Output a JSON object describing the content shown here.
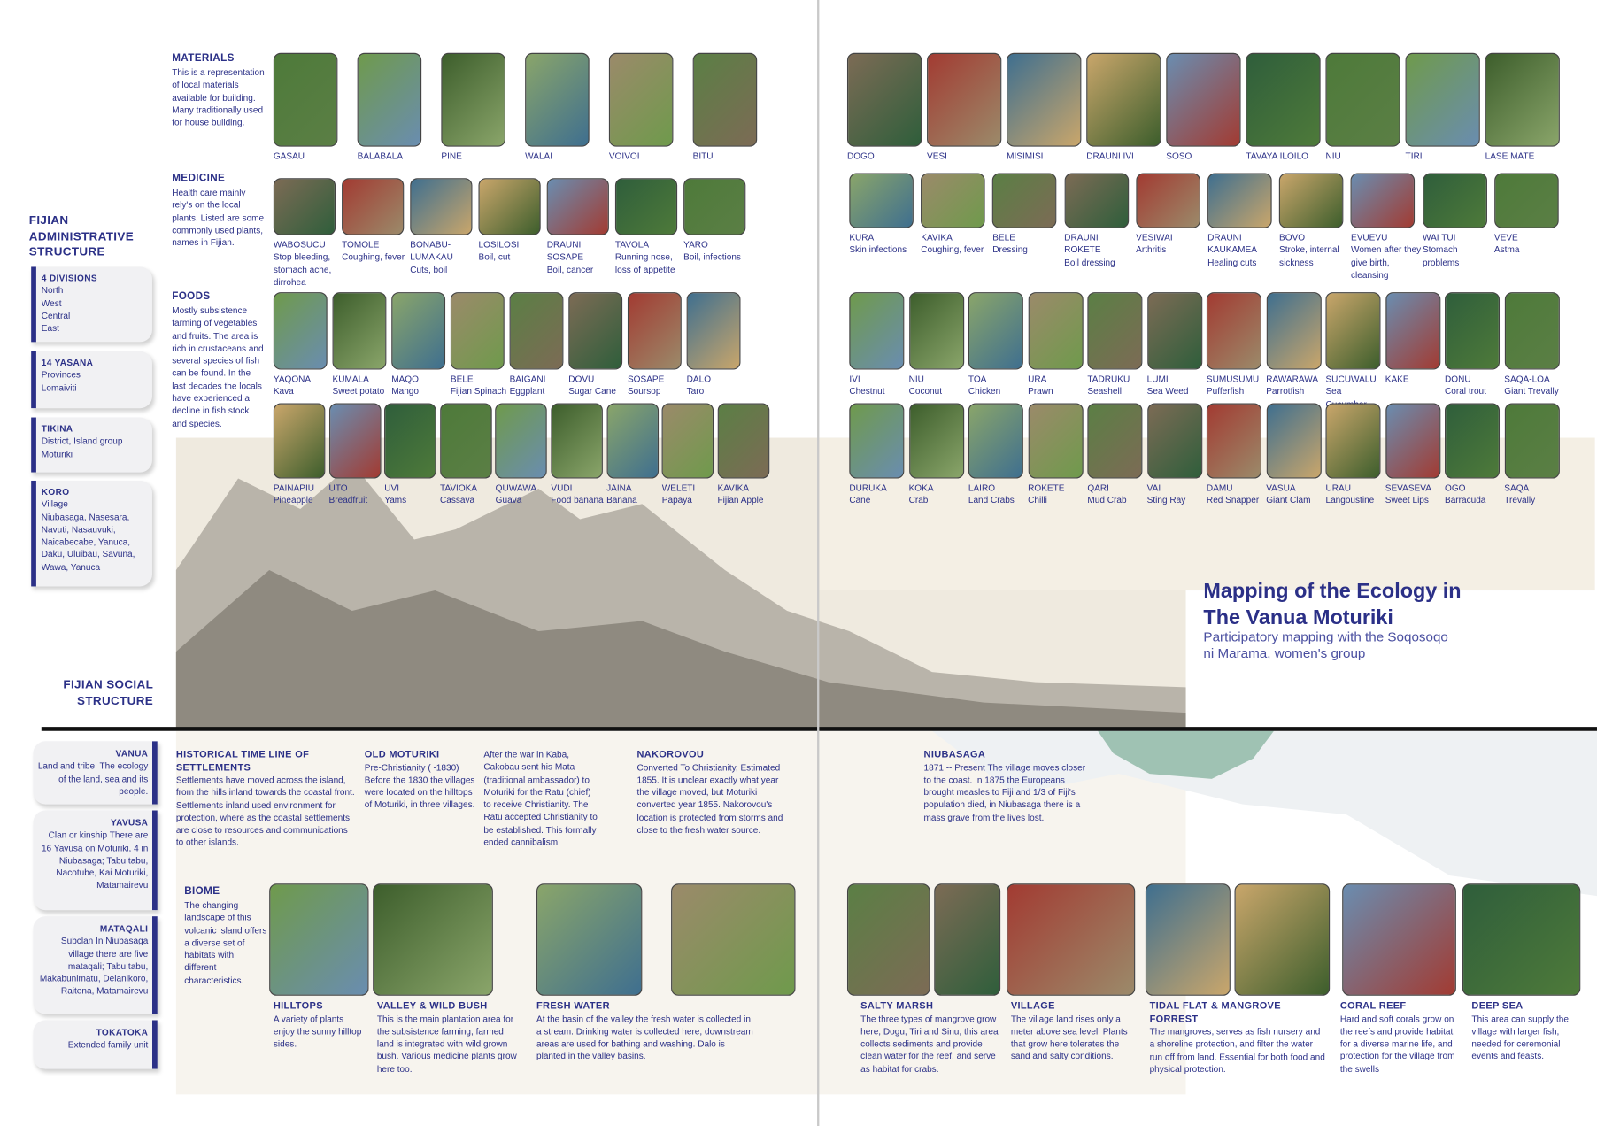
{
  "title": "Mapping of the Ecology in The Vanua Moturiki",
  "subtitle": "Participatory mapping with the Soqosoqo ni Marama, women's group",
  "admin": {
    "heading": "FIJIAN ADMINISTRATIVE STRUCTURE",
    "items": [
      {
        "title": "4 DIVISIONS",
        "lines": [
          "North",
          "West",
          "Central",
          "East"
        ]
      },
      {
        "title": "14 YASANA",
        "lines": [
          "Provinces",
          "Lomaiviti"
        ]
      },
      {
        "title": "TIKINA",
        "lines": [
          "District, Island group",
          "Moturiki"
        ]
      },
      {
        "title": "KORO",
        "lines": [
          "Village",
          "Niubasaga, Nasesara, Navuti, Nasauvuki, Naicabecabe, Yanuca, Daku, Uluibau, Savuna, Wawa,  Yanuca"
        ]
      }
    ]
  },
  "social": {
    "heading": "FIJIAN SOCIAL STRUCTURE",
    "items": [
      {
        "title": "VANUA",
        "text": "Land and tribe. The ecology  of the land, sea and its people."
      },
      {
        "title": "YAVUSA",
        "text": "Clan or kinship There are 16 Yavusa on Moturiki, 4 in Niubasaga; Tabu tabu, Nacotube, Kai Moturiki, Matamairevu"
      },
      {
        "title": "MATAQALI",
        "text": "Subclan In Niubasaga village there are five mataqali; Tabu tabu, Makabunimatu, Delanikoro, Raitena, Matamairevu"
      },
      {
        "title": "TOKATOKA",
        "text": "Extended family unit"
      }
    ]
  },
  "materials": {
    "title": "MATERIALS",
    "text": "This is a representation of local materials available for building. Many traditionally used for house building.",
    "items": [
      {
        "name": "GASAU"
      },
      {
        "name": "BALABALA"
      },
      {
        "name": "PINE"
      },
      {
        "name": "WALAI"
      },
      {
        "name": "VOIVOI"
      },
      {
        "name": "BITU"
      }
    ]
  },
  "medicine": {
    "title": "MEDICINE",
    "text": "Health care mainly rely's on the local plants. Listed are some commonly used plants, names in Fijian.",
    "items": [
      {
        "name": "WABOSUCU",
        "use": "Stop bleeding, stomach ache, dirrohea"
      },
      {
        "name": "TOMOLE",
        "use": "Coughing, fever"
      },
      {
        "name": "BONABU-LUMAKAU",
        "use": "Cuts, boil"
      },
      {
        "name": "LOSILOSI",
        "use": "Boil, cut"
      },
      {
        "name": "DRAUNI SOSAPE",
        "use": "Boil, cancer"
      },
      {
        "name": "TAVOLA",
        "use": "Running nose, loss of appetite"
      },
      {
        "name": "YARO",
        "use": "Boil, infections"
      }
    ]
  },
  "foods": {
    "title": "FOODS",
    "text": "Mostly subsistence farming of vegetables and fruits. The area is rich in crustaceans and several species of fish can be found. In the last decades the locals have experienced a decline in fish stock and species.",
    "items": [
      {
        "name": "YAQONA",
        "use": "Kava"
      },
      {
        "name": "KUMALA",
        "use": "Sweet potato"
      },
      {
        "name": "MAQO",
        "use": "Mango"
      },
      {
        "name": "BELE",
        "use": "Fijian Spinach"
      },
      {
        "name": "BAIGANI",
        "use": "Eggplant"
      },
      {
        "name": "DOVU",
        "use": "Sugar Cane"
      },
      {
        "name": "SOSAPE",
        "use": "Soursop"
      },
      {
        "name": "DALO",
        "use": "Taro"
      },
      {
        "name": "PAINAPIU",
        "use": "Pineapple"
      },
      {
        "name": "UTO",
        "use": "Breadfruit"
      },
      {
        "name": "UVI",
        "use": "Yams"
      },
      {
        "name": "TAVIOKA",
        "use": "Cassava"
      },
      {
        "name": "QUWAWA",
        "use": "Guava"
      },
      {
        "name": "VUDI",
        "use": "Food banana"
      },
      {
        "name": "JAINA",
        "use": "Banana"
      },
      {
        "name": "WELETI",
        "use": "Papaya"
      },
      {
        "name": "KAVIKA",
        "use": "Fijian Apple"
      }
    ]
  },
  "right": {
    "rows": [
      [
        {
          "name": "DOGO"
        },
        {
          "name": "VESI"
        },
        {
          "name": "MISIMISI"
        },
        {
          "name": "DRAUNI IVI"
        },
        {
          "name": "SOSO"
        },
        {
          "name": "TAVAYA ILOILO"
        },
        {
          "name": "NIU"
        },
        {
          "name": "TIRI"
        },
        {
          "name": "LASE MATE"
        }
      ],
      [
        {
          "name": "KURA",
          "use": "Skin infections"
        },
        {
          "name": "KAVIKA",
          "use": "Coughing, fever"
        },
        {
          "name": "BELE",
          "use": "Dressing"
        },
        {
          "name": "DRAUNI ROKETE",
          "use": "Boil dressing"
        },
        {
          "name": "VESIWAI",
          "use": "Arthritis"
        },
        {
          "name": "DRAUNI KAUKAMEA",
          "use": "Healing cuts"
        },
        {
          "name": "BOVO",
          "use": "Stroke, internal sickness"
        },
        {
          "name": "EVUEVU",
          "use": "Women after they give birth, cleansing"
        },
        {
          "name": "WAI TUI",
          "use": "Stomach problems"
        },
        {
          "name": "VEVE",
          "use": "Astma"
        }
      ],
      [
        {
          "name": "IVI",
          "use": "Chestnut"
        },
        {
          "name": "NIU",
          "use": "Coconut"
        },
        {
          "name": "TOA",
          "use": "Chicken"
        },
        {
          "name": "URA",
          "use": "Prawn"
        },
        {
          "name": "TADRUKU",
          "use": "Seashell"
        },
        {
          "name": "LUMI",
          "use": "Sea Weed"
        },
        {
          "name": "SUMUSUMU",
          "use": "Pufferfish"
        },
        {
          "name": "RAWARAWA",
          "use": "Parrotfish"
        },
        {
          "name": "SUCUWALU",
          "use": "Sea Cucumber"
        },
        {
          "name": "KAKE"
        },
        {
          "name": "DONU",
          "use": "Coral trout"
        },
        {
          "name": "SAQA-LOA",
          "use": "Giant Trevally"
        }
      ],
      [
        {
          "name": "DURUKA",
          "use": "Cane"
        },
        {
          "name": "KOKA",
          "use": "Crab"
        },
        {
          "name": "LAIRO",
          "use": "Land Crabs"
        },
        {
          "name": "ROKETE",
          "use": "Chilli"
        },
        {
          "name": "QARI",
          "use": "Mud Crab"
        },
        {
          "name": "VAI",
          "use": "Sting Ray"
        },
        {
          "name": "DAMU",
          "use": "Red Snapper"
        },
        {
          "name": "VASUA",
          "use": "Giant Clam"
        },
        {
          "name": "URAU",
          "use": "Langoustine"
        },
        {
          "name": "SEVASEVA",
          "use": "Sweet Lips"
        },
        {
          "name": "OGO",
          "use": "Barracuda"
        },
        {
          "name": "SAQA",
          "use": "Trevally"
        }
      ]
    ]
  },
  "timeline": [
    {
      "title": "HISTORICAL TIME LINE OF SETTLEMENTS",
      "text": "Settlements have moved across the island, from the hills inland towards the coastal front. Settlements inland used environment for protection, where as the coastal settlements are close to resources and communications to other islands."
    },
    {
      "title": "OLD MOTURIKI",
      "text": "Pre-Christianity ( -1830) Before the 1830 the villages were located on the hilltops of Moturiki, in three villages."
    },
    {
      "text": "After the war in Kaba, Cakobau sent his Mata (traditional ambassador) to Moturiki for the Ratu (chief) to receive Christianity. The Ratu accepted Christianity to be established. This formally ended cannibalism."
    },
    {
      "title": "NAKOROVOU",
      "text": "Converted To Christianity, Estimated 1855. It is unclear exactly what year the village moved, but Moturiki converted year 1855. Nakorovou's location is protected from storms and close to the fresh water source."
    },
    {
      "title": "NIUBASAGA",
      "text": "1871 -- Present The village moves closer to the coast. In 1875 the Europeans brought measles to Fiji and 1/3 of Fiji's population died, in Niubasaga there is a mass grave from the lives lost."
    }
  ],
  "biome": {
    "title": "BIOME",
    "text": "The changing landscape of this volcanic island offers a diverse set of habitats with different characteristics.",
    "habitats": [
      {
        "title": "HILLTOPS",
        "text": "A variety of plants enjoy the sunny hilltop sides."
      },
      {
        "title": "VALLEY & WILD BUSH",
        "text": "This is the main plantation area for the subsistence farming, farmed land is integrated with wild grown bush. Various medicine plants grow here too."
      },
      {
        "title": "FRESH WATER",
        "text": "At the basin of the valley the fresh water is collected in a stream. Drinking water is collected here, downstream areas are used for bathing and washing. Dalo is planted in the valley basins."
      },
      {
        "title": "SALTY MARSH",
        "text": "The three types of mangrove grow here, Dogu, Tiri and Sinu, this area collects sediments and provide clean water for the reef, and serve as habitat for crabs."
      },
      {
        "title": "VILLAGE",
        "text": "The village land rises only a meter above sea level. Plants that grow here tolerates the sand and salty conditions."
      },
      {
        "title": "TIDAL FLAT & MANGROVE FORREST",
        "text": "The mangroves, serves as fish nursery and a shoreline protection, and filter the water run off from land. Essential for both food and physical protection."
      },
      {
        "title": "CORAL REEF",
        "text": "Hard and soft corals grow on the reefs and provide habitat for a diverse marine life, and protection for the village from the swells"
      },
      {
        "title": "DEEP SEA",
        "text": "This area can supply the village with larger fish, needed for ceremonial events and feasts."
      }
    ]
  }
}
